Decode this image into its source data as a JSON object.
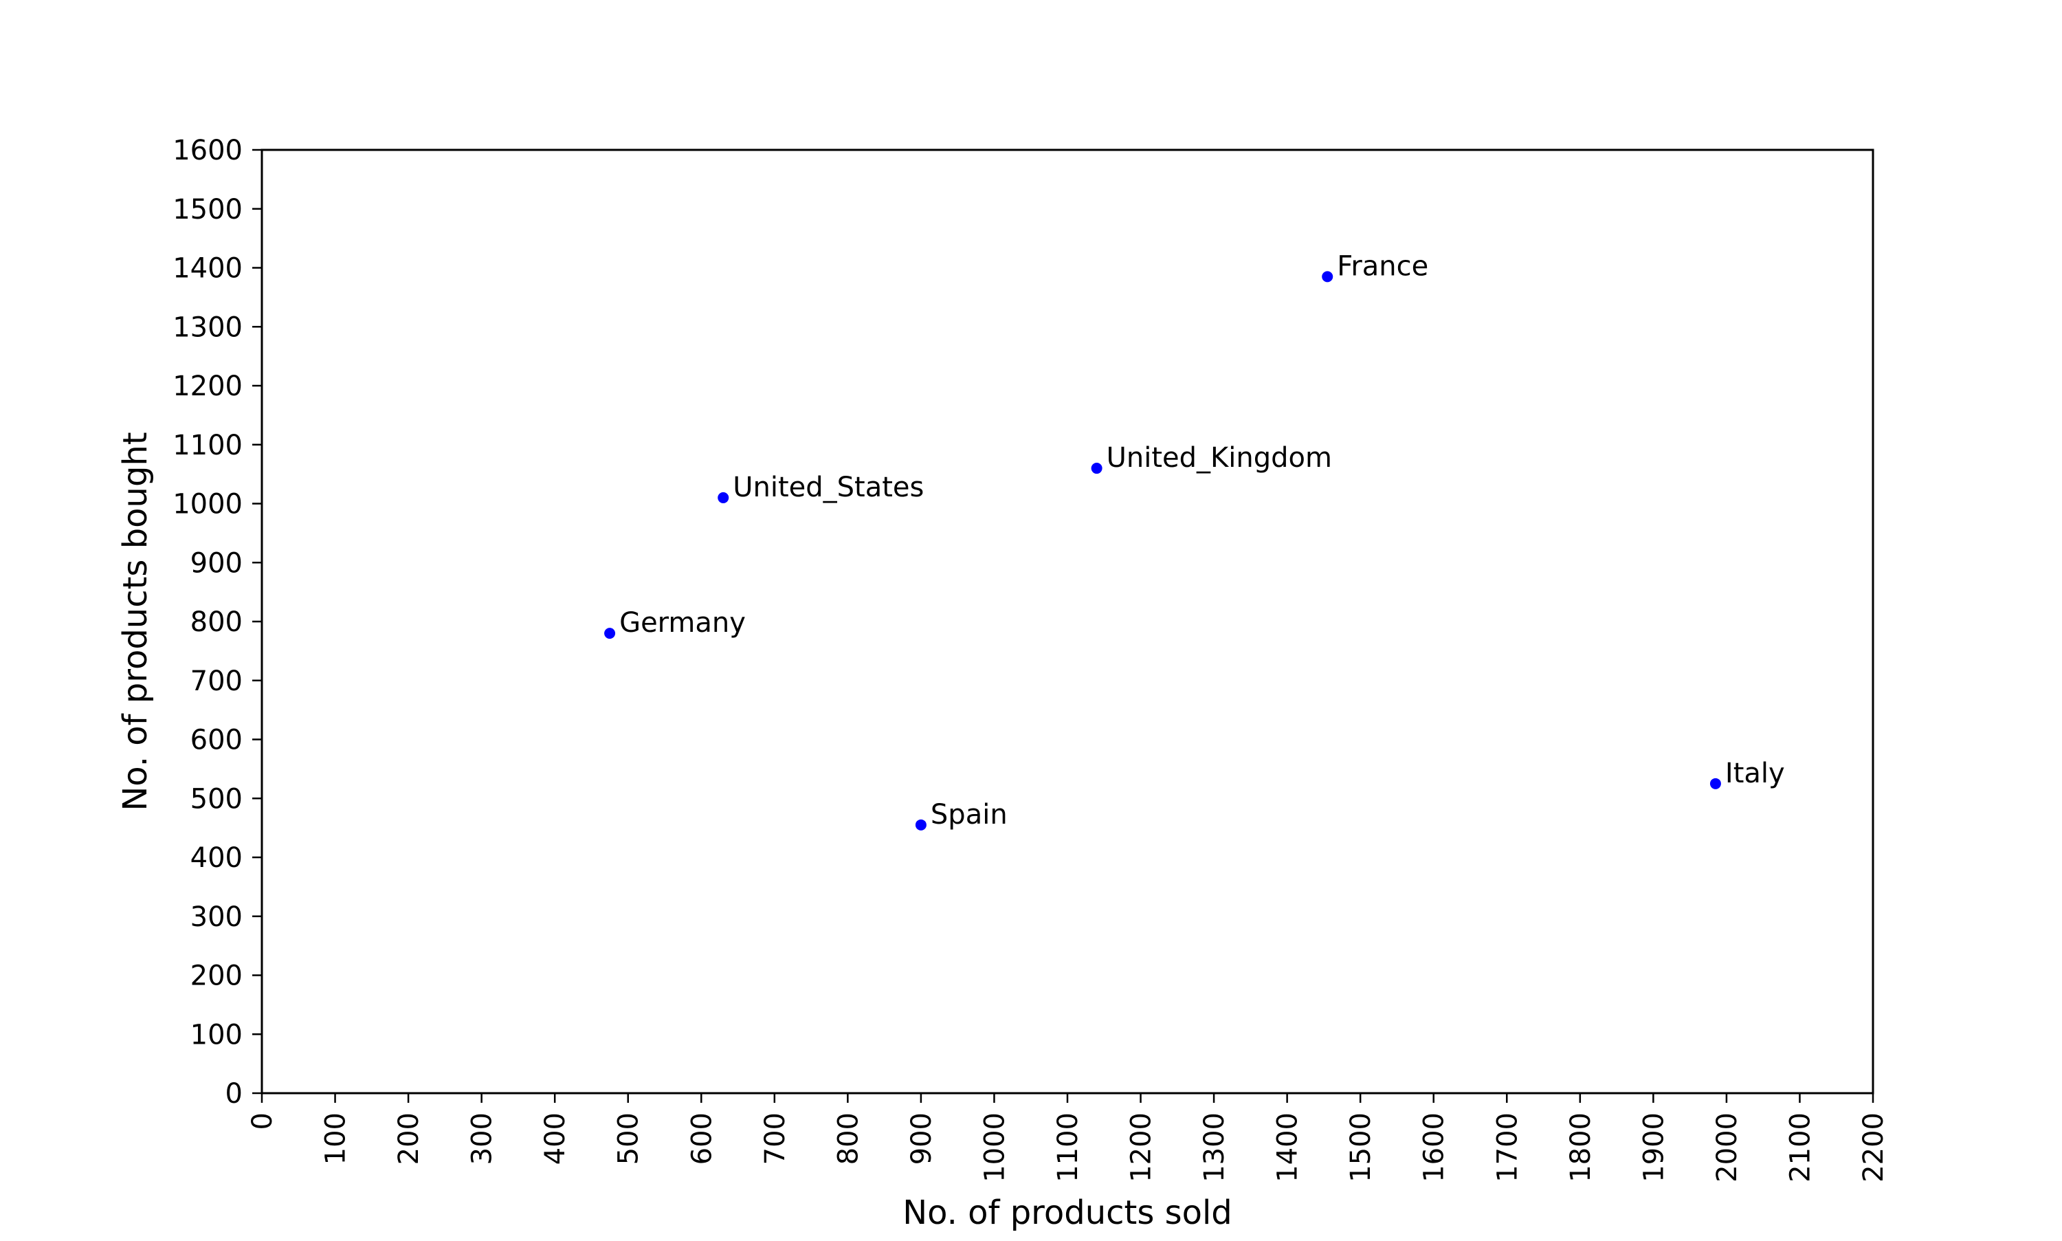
{
  "chart_data": {
    "type": "scatter",
    "title": "",
    "xlabel": "No. of products sold",
    "ylabel": "No. of products bought",
    "xlim": [
      0,
      2200
    ],
    "ylim": [
      0,
      1600
    ],
    "x_ticks": [
      0,
      100,
      200,
      300,
      400,
      500,
      600,
      700,
      800,
      900,
      1000,
      1100,
      1200,
      1300,
      1400,
      1500,
      1600,
      1700,
      1800,
      1900,
      2000,
      2100,
      2200
    ],
    "y_ticks": [
      0,
      100,
      200,
      300,
      400,
      500,
      600,
      700,
      800,
      900,
      1000,
      1100,
      1200,
      1300,
      1400,
      1500,
      1600
    ],
    "grid": false,
    "legend": "none",
    "marker_color": "#0000ff",
    "points": [
      {
        "label": "France",
        "x": 1455,
        "y": 1385
      },
      {
        "label": "United_Kingdom",
        "x": 1140,
        "y": 1060
      },
      {
        "label": "United_States",
        "x": 630,
        "y": 1010
      },
      {
        "label": "Germany",
        "x": 475,
        "y": 780
      },
      {
        "label": "Spain",
        "x": 900,
        "y": 455
      },
      {
        "label": "Italy",
        "x": 1985,
        "y": 525
      }
    ]
  }
}
